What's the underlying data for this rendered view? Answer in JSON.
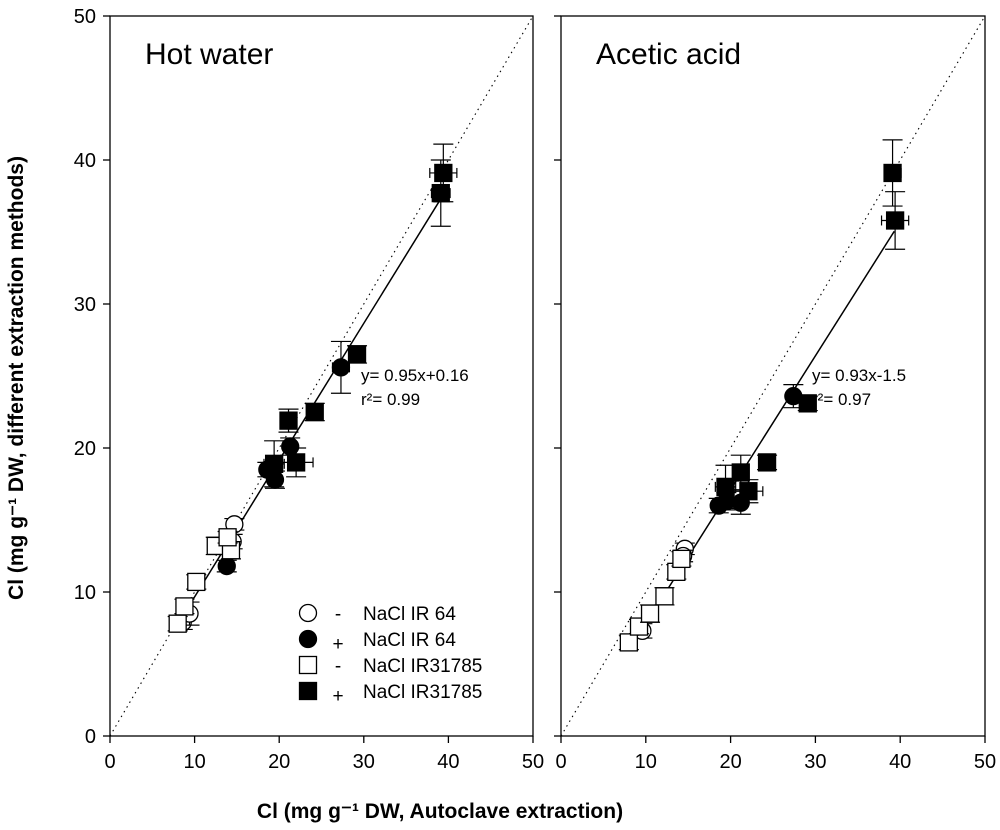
{
  "chart_data": [
    {
      "type": "scatter",
      "title": "Hot water",
      "xlim": [
        0,
        50
      ],
      "ylim": [
        0,
        50
      ],
      "xticks": [
        0,
        10,
        20,
        30,
        40,
        50
      ],
      "yticks": [
        0,
        10,
        20,
        30,
        40,
        50
      ],
      "identity_line": true,
      "regression": {
        "slope": 0.95,
        "intercept": 0.16,
        "x_range": [
          8,
          39.3
        ],
        "equation": "y= 0.95x+0.16",
        "r2": "r²= 0.99"
      },
      "series": [
        {
          "name": "- NaCl IR 64",
          "marker": "circle",
          "filled": false,
          "points": [
            [
              8.6,
              7.9,
              0.6,
              0.5
            ],
            [
              9.4,
              8.5,
              0.6,
              0.8
            ],
            [
              14.5,
              13.5,
              0.4,
              0.5
            ],
            [
              14.7,
              14.7,
              0.4,
              0.4
            ]
          ]
        },
        {
          "name": "+ NaCl IR 64",
          "marker": "circle",
          "filled": true,
          "points": [
            [
              13.8,
              11.8,
              0.4,
              0.4
            ],
            [
              18.6,
              18.5,
              0.5,
              0.5
            ],
            [
              19.5,
              17.8,
              0.6,
              0.6
            ],
            [
              21.3,
              20.1,
              0.6,
              0.6
            ],
            [
              27.3,
              25.6,
              1.0,
              1.8
            ]
          ]
        },
        {
          "name": "- NaCl IR31785",
          "marker": "square",
          "filled": false,
          "points": [
            [
              8,
              7.8,
              0.5,
              0.5
            ],
            [
              8.8,
              9,
              0.5,
              0.5
            ],
            [
              10.2,
              10.7,
              0.5,
              0.5
            ],
            [
              12.5,
              13.2,
              0.8,
              0.6
            ],
            [
              14.3,
              12.9,
              0.5,
              0.6
            ],
            [
              13.9,
              13.8,
              0.4,
              0.4
            ]
          ]
        },
        {
          "name": "+ NaCl IR31785",
          "marker": "square",
          "filled": true,
          "points": [
            [
              19.4,
              18.9,
              1.2,
              1.6
            ],
            [
              21.1,
              21.9,
              0.8,
              0.8
            ],
            [
              22,
              19,
              2,
              1
            ],
            [
              24.2,
              22.5,
              0.6,
              0.6
            ],
            [
              29.2,
              26.5,
              0.6,
              0.6
            ],
            [
              39.1,
              37.7,
              1.1,
              2.3
            ],
            [
              39.4,
              39.1,
              1.6,
              2
            ]
          ]
        }
      ]
    },
    {
      "type": "scatter",
      "title": "Acetic acid",
      "xlim": [
        0,
        50
      ],
      "ylim": [
        0,
        50
      ],
      "xticks": [
        0,
        10,
        20,
        30,
        40,
        50
      ],
      "identity_line": true,
      "regression": {
        "slope": 0.93,
        "intercept": -1.5,
        "x_range": [
          8,
          39.3
        ],
        "equation": "y= 0.93x-1.5",
        "r2": "r²= 0.97"
      },
      "series": [
        {
          "name": "- NaCl IR 64",
          "marker": "circle",
          "filled": false,
          "points": [
            [
              9.6,
              7.3,
              0.5,
              0.5
            ],
            [
              14.6,
              13,
              0.4,
              0.4
            ],
            [
              14.4,
              12.5,
              0.4,
              0.4
            ]
          ]
        },
        {
          "name": "+ NaCl IR 64",
          "marker": "circle",
          "filled": true,
          "points": [
            [
              18.6,
              16,
              0.6,
              0.5
            ],
            [
              19.5,
              16.3,
              0.6,
              0.6
            ],
            [
              21.2,
              16.2,
              0.7,
              0.8
            ],
            [
              27.4,
              23.6,
              0.8,
              0.8
            ]
          ]
        },
        {
          "name": "- NaCl IR31785",
          "marker": "square",
          "filled": false,
          "points": [
            [
              8,
              6.5,
              0.5,
              0.5
            ],
            [
              9.2,
              7.6,
              0.5,
              0.5
            ],
            [
              10.5,
              8.5,
              0.6,
              0.6
            ],
            [
              12.2,
              9.7,
              0.6,
              0.6
            ],
            [
              13.6,
              11.4,
              0.5,
              0.5
            ],
            [
              14.2,
              12.3,
              0.5,
              0.5
            ]
          ]
        },
        {
          "name": "+ NaCl IR31785",
          "marker": "square",
          "filled": true,
          "points": [
            [
              19.4,
              17.3,
              1.2,
              1.5
            ],
            [
              21.2,
              18.3,
              0.8,
              1.2
            ],
            [
              22.1,
              17,
              1.7,
              0.8
            ],
            [
              24.3,
              19,
              0.5,
              0.5
            ],
            [
              29.1,
              23.1,
              0.8,
              0.5
            ],
            [
              39.1,
              39.1,
              1,
              2.3
            ],
            [
              39.4,
              35.8,
              1.6,
              2
            ]
          ]
        }
      ]
    }
  ],
  "labels": {
    "xaxis": "Cl (mg g⁻¹ DW, Autoclave extraction)",
    "yaxis": "Cl (mg g⁻¹ DW, different extraction methods)",
    "legend": [
      {
        "sign": "-",
        "text": "NaCl IR 64",
        "marker": "circle",
        "filled": false
      },
      {
        "sign": "+",
        "text": "NaCl IR 64",
        "marker": "circle",
        "filled": true
      },
      {
        "sign": "-",
        "text": "NaCl IR31785",
        "marker": "square",
        "filled": false
      },
      {
        "sign": "+",
        "text": "NaCl IR31785",
        "marker": "square",
        "filled": true
      }
    ]
  }
}
